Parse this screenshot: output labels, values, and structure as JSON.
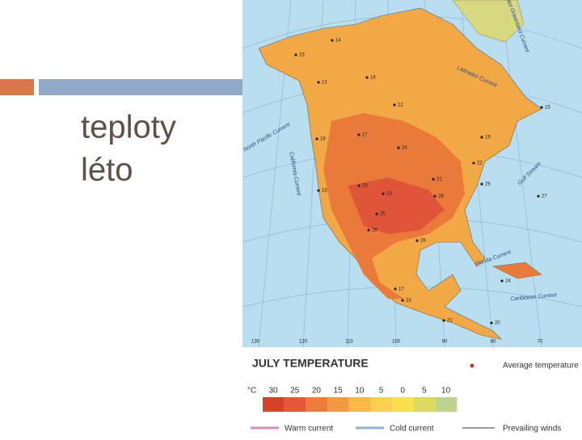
{
  "slide": {
    "title_lines": [
      "teploty",
      "léto"
    ]
  },
  "map": {
    "title": "JULY TEMPERATURE",
    "longitudes": [
      "130",
      "120",
      "110",
      "100",
      "90",
      "80",
      "70"
    ],
    "currents": [
      "East Greenland Current",
      "Labrador Current",
      "North Pacific Current",
      "California Current",
      "Gulf Stream",
      "Florida Current",
      "Caribbean Current"
    ],
    "temperatures": [
      "14",
      "15",
      "13",
      "16",
      "12",
      "15",
      "17",
      "24",
      "18",
      "19",
      "22",
      "21",
      "26",
      "15",
      "25",
      "23",
      "28",
      "25",
      "29",
      "26",
      "27",
      "24",
      "17",
      "23",
      "21",
      "20"
    ],
    "scale": {
      "unit": "°C",
      "ticks": [
        "30",
        "25",
        "20",
        "15",
        "10",
        "5",
        "0",
        "5",
        "10"
      ]
    },
    "legend": {
      "average": "Average temperature",
      "warm": "Warm current",
      "cold": "Cold current",
      "winds": "Prevailing winds"
    }
  }
}
